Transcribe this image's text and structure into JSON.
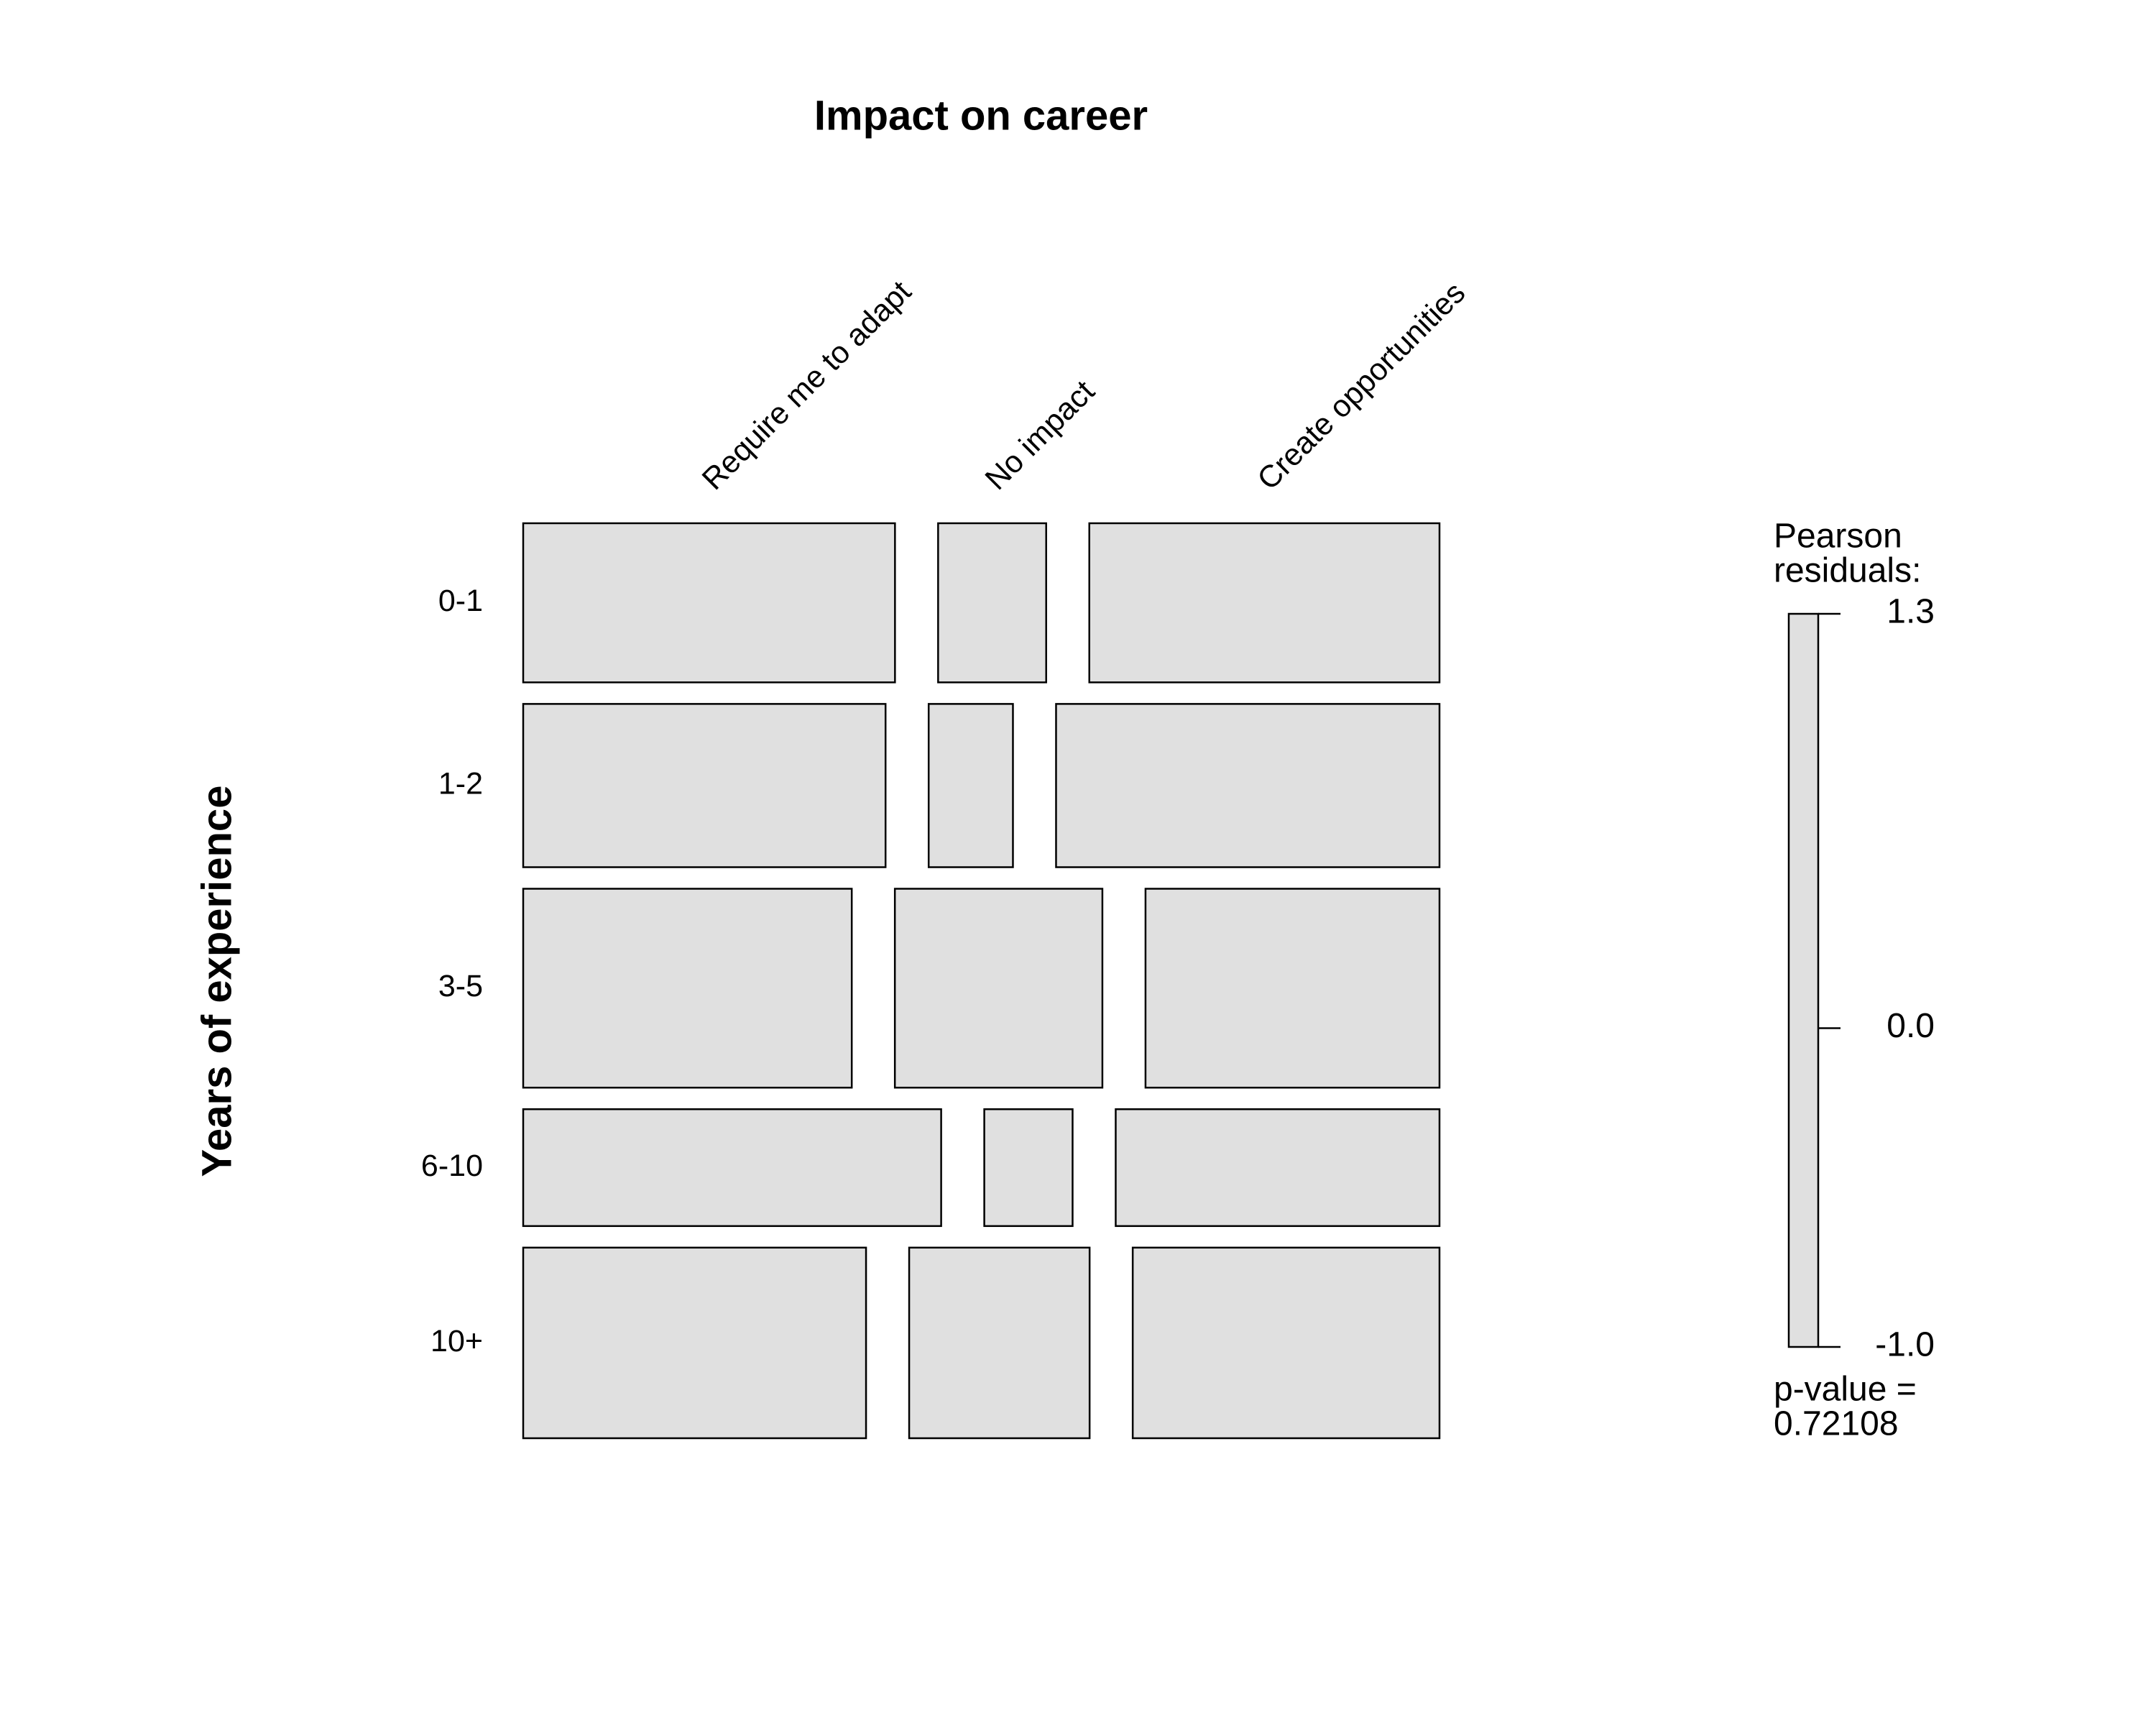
{
  "chart_data": {
    "type": "mosaic",
    "title": "Impact on career",
    "y_label": "Years of experience",
    "categories": [
      "Require me to adapt",
      "No impact",
      "Create opportunities"
    ],
    "rows": [
      "0-1",
      "1-2",
      "3-5",
      "6-10",
      "10+"
    ],
    "values": [
      [
        8.6,
        2.5,
        8.1
      ],
      [
        8.6,
        2.0,
        9.1
      ],
      [
        9.5,
        6.0,
        8.5
      ],
      [
        7.1,
        1.5,
        5.5
      ],
      [
        9.5,
        5.0,
        8.5
      ]
    ],
    "color": "#e0e0e0",
    "legend_title": [
      "Pearson",
      "residuals:"
    ],
    "legend_lim": [
      -1.0,
      1.3
    ],
    "legend_ticks": [
      1.3,
      {
        "value": 0,
        "label": "0.0"
      },
      {
        "value": -1,
        "label": "-1.0"
      }
    ],
    "p_value_label": "p-value =",
    "p_value": 0.72108
  }
}
